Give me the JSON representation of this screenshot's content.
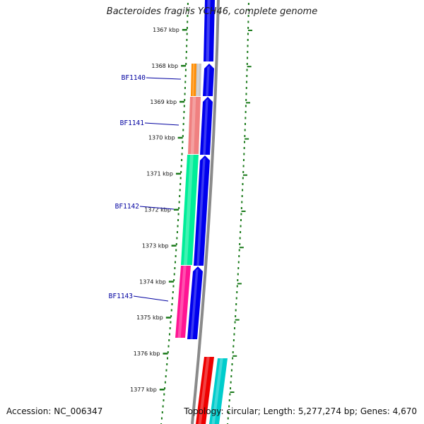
{
  "title": "Bacteroides fragilis YCH46, complete genome",
  "accession_label": "Accession: NC_006347",
  "summary_label": "Topology: circular; Length: 5,277,274 bp; Genes: 4,670",
  "scale": {
    "unit": "kbp",
    "ticks": [
      1367,
      1368,
      1369,
      1370,
      1371,
      1372,
      1373,
      1374,
      1375,
      1376,
      1377
    ]
  },
  "gene_labels": [
    "BF1140",
    "BF1141",
    "BF1142",
    "BF1143"
  ],
  "colors": {
    "backbone": "#8a8a8a",
    "tick": "#1a7a1a",
    "label": "#0000a0",
    "cds": "#0000ee",
    "gene_orange": "#ff8c00",
    "gene_salmon": "#f08080",
    "gene_green": "#00ee99",
    "gene_pink": "#ff1493",
    "feature_red": "#ee0000",
    "feature_cyan": "#00cccc"
  }
}
